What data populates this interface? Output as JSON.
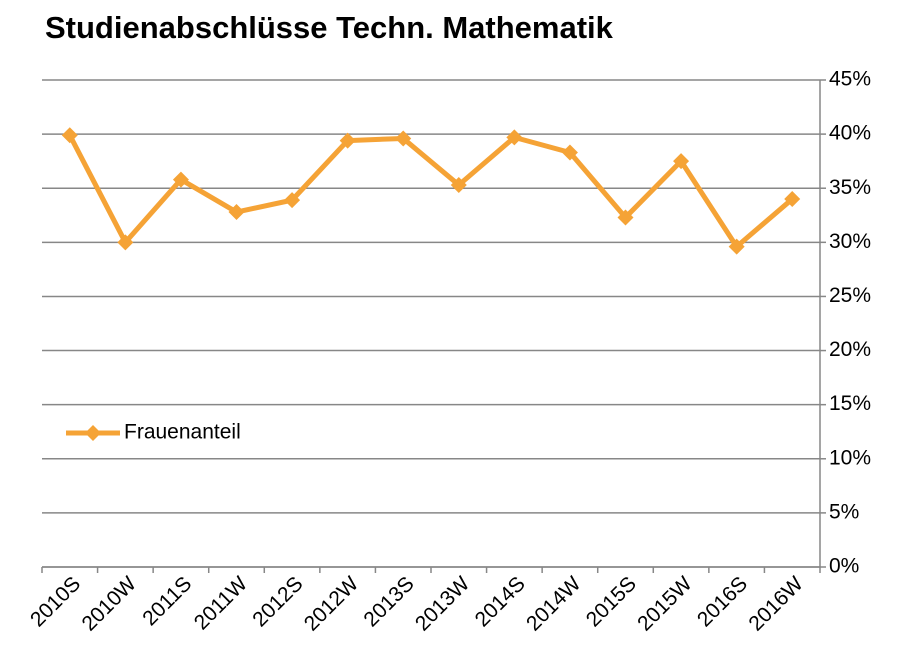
{
  "chart_data": {
    "type": "line",
    "title": "Studienabschlüsse Techn.  Mathematik",
    "categories": [
      "2010S",
      "2010W",
      "2011S",
      "2011W",
      "2012S",
      "2012W",
      "2013S",
      "2013W",
      "2014S",
      "2014W",
      "2015S",
      "2015W",
      "2016S",
      "2016W"
    ],
    "series": [
      {
        "name": "Frauenanteil",
        "color": "#f5a336",
        "values": [
          39.9,
          30.0,
          35.8,
          32.8,
          33.9,
          39.4,
          39.6,
          35.3,
          39.7,
          38.3,
          32.3,
          37.5,
          29.6,
          34.0
        ]
      }
    ],
    "ylim": [
      0,
      45
    ],
    "yticks": [
      {
        "value": 0,
        "label": "0%"
      },
      {
        "value": 5,
        "label": "5%"
      },
      {
        "value": 10,
        "label": "10%"
      },
      {
        "value": 15,
        "label": "15%"
      },
      {
        "value": 20,
        "label": "20%"
      },
      {
        "value": 25,
        "label": "25%"
      },
      {
        "value": 30,
        "label": "30%"
      },
      {
        "value": 35,
        "label": "35%"
      },
      {
        "value": 40,
        "label": "40%"
      },
      {
        "value": 45,
        "label": "45%"
      }
    ],
    "grid": true,
    "y_axis_side": "right",
    "legend": "left"
  }
}
